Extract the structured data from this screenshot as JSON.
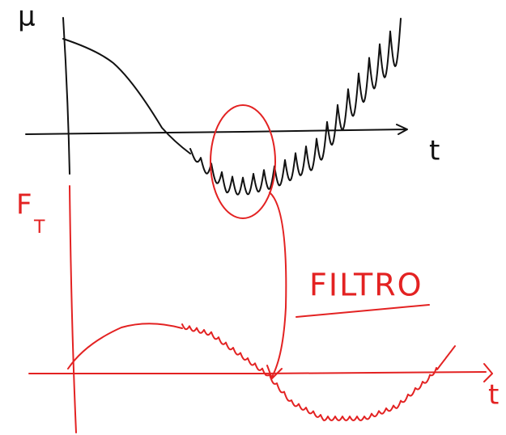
{
  "top_plot": {
    "y_label": "μ",
    "x_label": "t"
  },
  "bottom_plot": {
    "y_label": "F",
    "y_label_subscript": "T",
    "x_label": "t"
  },
  "annotation": "FILTRO"
}
